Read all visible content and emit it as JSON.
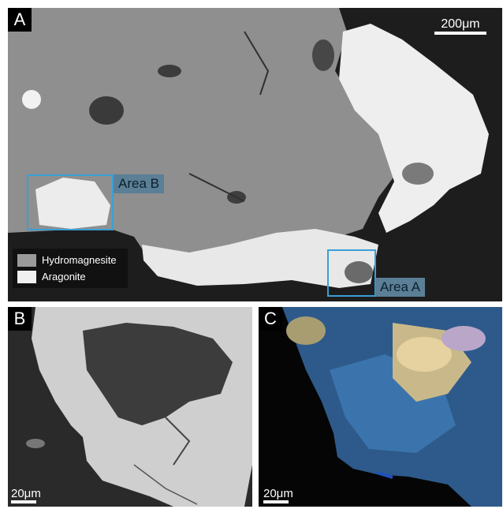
{
  "panels": {
    "a": {
      "label": "A",
      "scale_text": "200μm"
    },
    "b": {
      "label": "B",
      "scale_text": "20μm"
    },
    "c": {
      "label": "C",
      "scale_text": "20μm"
    }
  },
  "areas": [
    {
      "label": "Area B"
    },
    {
      "label": "Area A"
    }
  ],
  "legend": {
    "items": [
      {
        "label": "Hydromagnesite",
        "color": "#9a9a9a"
      },
      {
        "label": "Aragonite",
        "color": "#f0f0f0"
      }
    ]
  },
  "colors": {
    "background": "#1f1f1f",
    "hydromagnesite": "#8e8e8e",
    "aragonite": "#ececec",
    "area_box": "#3a9fd6"
  }
}
